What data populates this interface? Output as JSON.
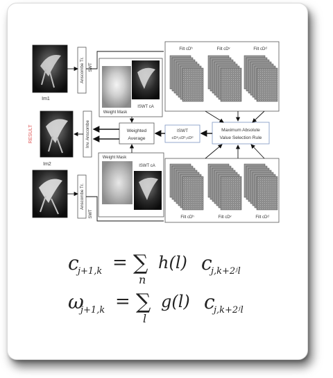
{
  "diagram": {
    "inputs": {
      "im1_label": "Im1",
      "im2_label": "Im2",
      "result_label": "RESULT"
    },
    "anscombe_top": "Anscombe Tr.",
    "anscombe_bottom": "Anscombe Tr.",
    "swt_top": "SWT",
    "swt_bottom": "SWT",
    "inv_anscombe": "Inv. Anscombe",
    "weight_mask_top": "Weight Mask",
    "iswt_ca_top": "ISWT cA",
    "weight_mask_bottom": "Weight Mask",
    "iswt_ca_bottom": "ISWT cA",
    "weighted_average": [
      "Weighted",
      "Average"
    ],
    "iswt_box": [
      "ISWT",
      "cDᵃ,cDᵇ,cDᵈ"
    ],
    "max_rule": [
      "Maximum Absolute",
      "Value Selection Rule"
    ],
    "filt_top": [
      "Filt cDʰ",
      "Filt cDᵛ",
      "Filt cDᵈ"
    ],
    "filt_bottom": [
      "Filt cDʰ",
      "Filt cDᵛ",
      "Filt cDᵈ"
    ]
  },
  "equations": {
    "eq1": {
      "lhs_base": "c",
      "lhs_sub": "j+1,k",
      "equals": "=",
      "sum": "∑",
      "sum_index": "n",
      "func": "h(l)",
      "rhs_base": "c",
      "rhs_sub": "j,k+2ʲl"
    },
    "eq2": {
      "lhs_base": "ω",
      "lhs_sub": "j+1,k",
      "equals": "=",
      "sum": "∑",
      "sum_index": "l",
      "func": "g(l)",
      "rhs_base": "c",
      "rhs_sub": "j,k+2ʲl"
    }
  }
}
